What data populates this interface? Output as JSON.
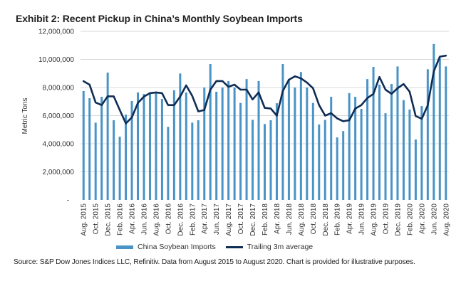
{
  "title": "Exhibit 2: Recent Pickup in China’s Monthly Soybean Imports",
  "source": "Source: S&P Dow Jones Indices LLC, Refinitiv. Data from August 2015 to August 2020. Chart is provided for illustrative purposes.",
  "colors": {
    "bars": "#4a93c6",
    "line": "#0f2c54",
    "grid": "#d9d9d9",
    "text": "#333333"
  },
  "legend": [
    {
      "label": "China Soybean Imports",
      "type": "bar"
    },
    {
      "label": "Trailing 3m average",
      "type": "line"
    }
  ],
  "chart_data": {
    "type": "bar+line",
    "title": "Exhibit 2: Recent Pickup in China’s Monthly Soybean Imports",
    "xlabel": "",
    "ylabel": "Metric Tons",
    "ylim": [
      0,
      12000000
    ],
    "yticks": [
      0,
      2000000,
      4000000,
      6000000,
      8000000,
      10000000,
      12000000
    ],
    "ytick_labels": [
      "-",
      "2,000,000",
      "4,000,000",
      "6,000,000",
      "8,000,000",
      "10,000,000",
      "12,000,000"
    ],
    "grid": true,
    "legend_position": "bottom",
    "x": [
      "Aug. 2015",
      "Sep. 2015",
      "Oct. 2015",
      "Nov. 2015",
      "Dec. 2015",
      "Jan. 2016",
      "Feb. 2016",
      "Mar. 2016",
      "Apr. 2016",
      "May. 2016",
      "Jun. 2016",
      "Jul. 2016",
      "Aug. 2016",
      "Sep. 2016",
      "Oct. 2016",
      "Nov. 2016",
      "Dec. 2016",
      "Jan. 2017",
      "Feb. 2017",
      "Mar. 2017",
      "Apr. 2017",
      "May. 2017",
      "Jun. 2017",
      "Jul. 2017",
      "Aug. 2017",
      "Sep. 2017",
      "Oct. 2017",
      "Nov. 2017",
      "Dec. 2017",
      "Jan. 2018",
      "Feb. 2018",
      "Mar. 2018",
      "Apr. 2018",
      "May. 2018",
      "Jun. 2018",
      "Jul. 2018",
      "Aug. 2018",
      "Sep. 2018",
      "Oct. 2018",
      "Nov. 2018",
      "Dec. 2018",
      "Jan. 2019",
      "Feb. 2019",
      "Mar. 2019",
      "Apr. 2019",
      "May. 2019",
      "Jun. 2019",
      "Jul. 2019",
      "Aug. 2019",
      "Sep. 2019",
      "Oct. 2019",
      "Nov. 2019",
      "Dec. 2019",
      "Jan. 2020",
      "Feb. 2020",
      "Mar. 2020",
      "Apr. 2020",
      "May. 2020",
      "Jun. 2020",
      "Jul. 2020",
      "Aug. 2020"
    ],
    "x_tick_labels_shown_every": 2,
    "series": [
      {
        "name": "China Soybean Imports",
        "type": "bar",
        "values": [
          7750000,
          7240000,
          5500000,
          7340000,
          9060000,
          5670000,
          4500000,
          6070000,
          7040000,
          7650000,
          7540000,
          7600000,
          7600000,
          7190000,
          5200000,
          7800000,
          9000000,
          7650000,
          5500000,
          5670000,
          8000000,
          9670000,
          7700000,
          8000000,
          8460000,
          8000000,
          6900000,
          8600000,
          5700000,
          8460000,
          5400000,
          5670000,
          6880000,
          9670000,
          8600000,
          8000000,
          9100000,
          8000000,
          6900000,
          5370000,
          5700000,
          7340000,
          4450000,
          4900000,
          7600000,
          7340000,
          6480000,
          8600000,
          9470000,
          8200000,
          6170000,
          8250000,
          9500000,
          7100000,
          6430000,
          4300000,
          6680000,
          9300000,
          11100000,
          10100000,
          9500000
        ]
      },
      {
        "name": "Trailing 3m average",
        "type": "line",
        "values": [
          8450000,
          8200000,
          6930000,
          6750000,
          7370000,
          7370000,
          6400000,
          5450000,
          5870000,
          6900000,
          7350000,
          7600000,
          7650000,
          7600000,
          6750000,
          6750000,
          7350000,
          8150000,
          7400000,
          6300000,
          6400000,
          7850000,
          8460000,
          8460000,
          8050000,
          8200000,
          7850000,
          7850000,
          7150000,
          7650000,
          6550000,
          6500000,
          6000000,
          7750000,
          8550000,
          8800000,
          8650000,
          8350000,
          7950000,
          6750000,
          6000000,
          6170000,
          5800000,
          5600000,
          5670000,
          6500000,
          6750000,
          7250000,
          7550000,
          8750000,
          7850000,
          7550000,
          7950000,
          8250000,
          7700000,
          5970000,
          5770000,
          6730000,
          9150000,
          10200000,
          10270000
        ]
      }
    ]
  }
}
